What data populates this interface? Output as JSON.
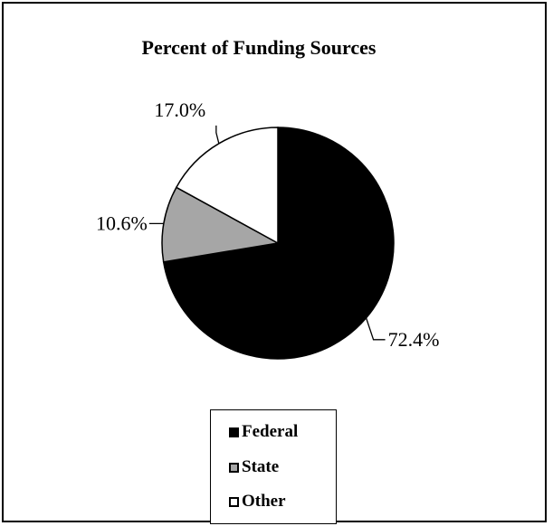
{
  "chart_data": {
    "type": "pie",
    "title": "Percent of Funding Sources",
    "slices": [
      {
        "name": "Federal",
        "value": 72.4,
        "label": "72.4%",
        "color": "#000000"
      },
      {
        "name": "State",
        "value": 10.6,
        "label": "10.6%",
        "color": "#a6a6a6"
      },
      {
        "name": "Other",
        "value": 17.0,
        "label": "17.0%",
        "color": "#ffffff"
      }
    ],
    "legend": {
      "position": "bottom",
      "items": [
        "Federal",
        "State",
        "Other"
      ]
    }
  }
}
